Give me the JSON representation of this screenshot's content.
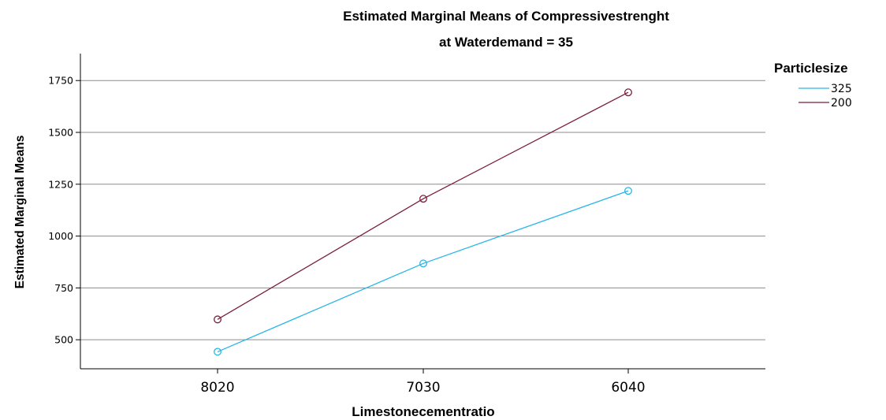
{
  "chart_data": {
    "type": "line",
    "title": "Estimated Marginal Means of Compressivestrenght",
    "subtitle": "at Waterdemand = 35",
    "xlabel": "Limestonecementratio",
    "ylabel": "Estimated Marginal Means",
    "categories": [
      "8020",
      "7030",
      "6040"
    ],
    "ylim": [
      360,
      1880
    ],
    "yticks": [
      500,
      750,
      1000,
      1250,
      1500,
      1750
    ],
    "ytick_labels": [
      "500",
      "750",
      "1000",
      "1250",
      "1500",
      "1750"
    ],
    "grid": true,
    "legend_title": "Particlesize",
    "legend_position": "top-right",
    "series": [
      {
        "name": "325",
        "values": [
          442,
          868,
          1218
        ],
        "color": "#29b6e6"
      },
      {
        "name": "200",
        "values": [
          598,
          1180,
          1693
        ],
        "color": "#7a1f3a"
      }
    ]
  }
}
